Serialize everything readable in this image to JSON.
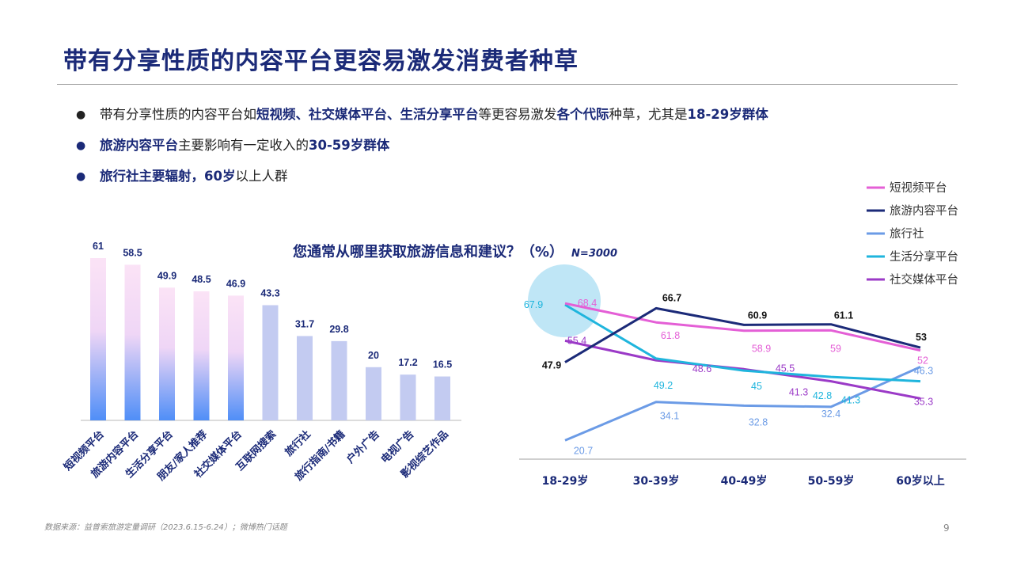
{
  "title": "带有分享性质的内容平台更容易激发消费者种草",
  "bullets": [
    {
      "segments": [
        {
          "text": "带有分享性质的内容平台如",
          "bold": false
        },
        {
          "text": "短视频、社交媒体平台、生活分享平台",
          "bold": true
        },
        {
          "text": "等更容易激发",
          "bold": false
        },
        {
          "text": "各个代际",
          "bold": true
        },
        {
          "text": "种草，尤其是",
          "bold": false
        },
        {
          "text": "18-29岁群体",
          "bold": true
        }
      ]
    },
    {
      "segments": [
        {
          "text": "旅游内容平台",
          "bold": true
        },
        {
          "text": "主要影响有一定收入的",
          "bold": false
        },
        {
          "text": "30-59岁群体",
          "bold": true
        }
      ]
    },
    {
      "segments": [
        {
          "text": "旅行社主要辐射，",
          "bold": true
        },
        {
          "text": "60岁",
          "bold": true
        },
        {
          "text": "以上人群",
          "bold": false
        }
      ]
    }
  ],
  "chart_header": {
    "text": "您通常从哪里获取旅游信息和建议？（%）",
    "note": "N=3000"
  },
  "colors": {
    "title": "#1b2a78",
    "bar_pink_top": "#fbe3f6",
    "bar_pink_bottom": "#4f8ef7",
    "bar_lavender": "#c3cbf1",
    "short_video": "#e45fd6",
    "travel_content": "#1b2a78",
    "travel_agency": "#6b9be6",
    "life_sharing": "#1fb5dd",
    "social_media": "#9b3ac7"
  },
  "chart_data": [
    {
      "type": "bar",
      "categories": [
        "短视频平台",
        "旅游内容平台",
        "生活分享平台",
        "朋友/家人推荐",
        "社交媒体平台",
        "互联网搜索",
        "旅行社",
        "旅行指南/书籍",
        "户外广告",
        "电视广告",
        "影视综艺作品"
      ],
      "values": [
        61,
        58.5,
        49.9,
        48.5,
        46.9,
        43.3,
        31.7,
        29.8,
        20,
        17.2,
        16.5
      ],
      "highlighted_count": 5,
      "ylim": [
        0,
        65
      ]
    },
    {
      "type": "line",
      "categories": [
        "18-29岁",
        "30-39岁",
        "40-49岁",
        "50-59岁",
        "60岁以上"
      ],
      "series": [
        {
          "name": "短视频平台",
          "values": [
            68.4,
            61.8,
            58.9,
            59,
            52
          ]
        },
        {
          "name": "旅游内容平台",
          "values": [
            47.9,
            66.7,
            60.9,
            61.1,
            53
          ]
        },
        {
          "name": "旅行社",
          "values": [
            20.7,
            34.1,
            32.8,
            32.4,
            46.3
          ]
        },
        {
          "name": "生活分享平台",
          "values": [
            67.9,
            49.2,
            45,
            42.8,
            41.3
          ]
        },
        {
          "name": "社交媒体平台",
          "values": [
            55.4,
            48.6,
            45.5,
            41.3,
            35.3
          ]
        }
      ],
      "legend_position": "top-right"
    }
  ],
  "footer": {
    "source": "数据来源：益普索旅游定量调研（2023.6.15-6.24）；微博热门话题",
    "page": "9"
  }
}
